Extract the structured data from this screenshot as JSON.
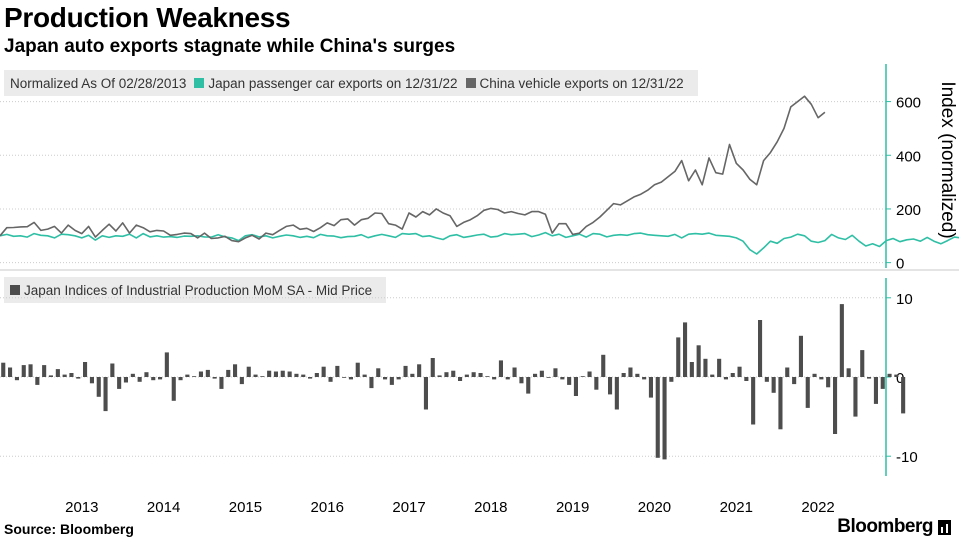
{
  "title": "Production Weakness",
  "subtitle": "Japan auto exports stagnate while China's surges",
  "source": "Source:  Bloomberg",
  "brand": "Bloomberg",
  "colors": {
    "japan": "#2ebfa5",
    "china": "#666666",
    "bars": "#4d4d4d",
    "axis": "#2ebfa5",
    "grid": "#cccccc"
  },
  "chart_data": [
    {
      "type": "line",
      "legend_prefix": "Normalized As Of 02/28/2013",
      "ylabel": "Index (normalized)",
      "ylim": [
        -20,
        740
      ],
      "yticks": [
        "0",
        "200",
        "400",
        "600"
      ],
      "ytick_values": [
        0,
        200,
        400,
        600
      ],
      "xlim": [
        2012.5,
        2023.33
      ],
      "series": [
        {
          "name": "Japan passenger car exports  on 12/31/22",
          "key": "japan",
          "x_start": 2012.5,
          "x_step": 0.0833333,
          "values": [
            100,
            105,
            98,
            100,
            95,
            108,
            102,
            100,
            92,
            106,
            104,
            100,
            92,
            102,
            84,
            100,
            94,
            100,
            98,
            106,
            92,
            108,
            96,
            100,
            95,
            97,
            94,
            99,
            98,
            100,
            96,
            95,
            104,
            96,
            92,
            82,
            100,
            104,
            96,
            100,
            92,
            98,
            103,
            100,
            94,
            98,
            93,
            105,
            100,
            99,
            93,
            97,
            98,
            104,
            93,
            100,
            105,
            100,
            94,
            108,
            106,
            108,
            97,
            100,
            92,
            86,
            100,
            104,
            94,
            98,
            103,
            106,
            95,
            98,
            108,
            104,
            106,
            108,
            97,
            103,
            112,
            100,
            106,
            94,
            100,
            106,
            95,
            108,
            106,
            96,
            102,
            104,
            102,
            108,
            110,
            104,
            102,
            100,
            98,
            105,
            92,
            106,
            108,
            106,
            110,
            102,
            100,
            98,
            92,
            80,
            48,
            32,
            55,
            80,
            72,
            90,
            95,
            106,
            100,
            80,
            75,
            82,
            105,
            92,
            86,
            102,
            80,
            62,
            70,
            60,
            82,
            90,
            78,
            85,
            88,
            80,
            94,
            80,
            70,
            82,
            95,
            92,
            88,
            100,
            92,
            94
          ]
        },
        {
          "name": "China vehicle exports on 12/31/22",
          "key": "china",
          "x_start": 2012.5,
          "x_step": 0.0833333,
          "values": [
            100,
            130,
            131,
            133,
            134,
            150,
            120,
            125,
            135,
            110,
            140,
            120,
            108,
            135,
            95,
            120,
            143,
            118,
            148,
            110,
            140,
            130,
            115,
            120,
            118,
            102,
            105,
            110,
            108,
            92,
            110,
            90,
            92,
            98,
            82,
            78,
            92,
            102,
            88,
            110,
            104,
            120,
            135,
            140,
            124,
            128,
            116,
            130,
            148,
            138,
            160,
            163,
            140,
            160,
            165,
            185,
            183,
            145,
            140,
            125,
            185,
            170,
            190,
            178,
            200,
            185,
            175,
            135,
            150,
            160,
            175,
            195,
            202,
            198,
            185,
            190,
            183,
            178,
            190,
            190,
            180,
            110,
            145,
            145,
            105,
            110,
            135,
            150,
            170,
            195,
            220,
            215,
            230,
            245,
            255,
            270,
            290,
            300,
            320,
            340,
            380,
            305,
            345,
            290,
            390,
            335,
            330,
            440,
            370,
            345,
            310,
            290,
            380,
            410,
            450,
            500,
            580,
            600,
            620,
            590,
            540,
            560
          ]
        }
      ]
    },
    {
      "type": "bar",
      "legend": "Japan Indices of Industrial Production MoM SA - Mid Price",
      "ylim": [
        -12.5,
        12.5
      ],
      "yticks": [
        "10",
        "0",
        "-10"
      ],
      "ytick_values": [
        10,
        0,
        -10
      ],
      "xlim": [
        2012.5,
        2023.33
      ],
      "x_start": 2012.54,
      "x_step": 0.0833333,
      "values": [
        1.8,
        1.2,
        -0.4,
        1.5,
        1.6,
        -1.0,
        1.5,
        0.2,
        1.0,
        0.3,
        0.5,
        -0.2,
        1.9,
        -0.8,
        -2.5,
        -4.3,
        1.7,
        -1.5,
        -0.7,
        0.4,
        -0.6,
        0.6,
        -0.4,
        -0.3,
        3.1,
        -3.0,
        -0.4,
        0.3,
        0.1,
        0.7,
        0.9,
        -0.2,
        -1.5,
        0.9,
        1.6,
        -0.9,
        1.3,
        0.3,
        0.1,
        0.8,
        0.7,
        0.8,
        0.7,
        0.4,
        0.3,
        -0.2,
        0.5,
        1.3,
        -0.6,
        1.4,
        -0.1,
        -0.3,
        1.8,
        0.3,
        -1.4,
        1.1,
        -0.3,
        -1.0,
        -0.3,
        1.4,
        0.4,
        1.6,
        -4.1,
        2.4,
        0.2,
        0.6,
        0.8,
        -0.5,
        0.3,
        0.6,
        0.5,
        0.1,
        -0.3,
        2.1,
        -0.3,
        1.2,
        -0.8,
        -2.1,
        0.4,
        0.8,
        -0.1,
        1.1,
        -0.3,
        -1.0,
        -2.4,
        0.1,
        0.7,
        -1.6,
        2.8,
        -2.2,
        -4.1,
        0.5,
        1.2,
        0.4,
        -0.3,
        -2.6,
        -10.2,
        -10.4,
        -0.6,
        5.0,
        6.9,
        1.9,
        4.0,
        2.3,
        0.3,
        2.3,
        -0.3,
        0.5,
        1.3,
        -0.5,
        -6.0,
        7.2,
        -0.6,
        -2.0,
        -6.6,
        1.2,
        -0.9,
        5.2,
        -3.9,
        0.4,
        -0.3,
        -1.3,
        -7.2,
        9.2,
        1.1,
        -5.0,
        3.4,
        -0.2,
        -3.4,
        -1.5,
        0.4,
        0.3,
        -4.6
      ]
    }
  ],
  "xticks": [
    "2013",
    "2014",
    "2015",
    "2016",
    "2017",
    "2018",
    "2019",
    "2020",
    "2021",
    "2022"
  ]
}
